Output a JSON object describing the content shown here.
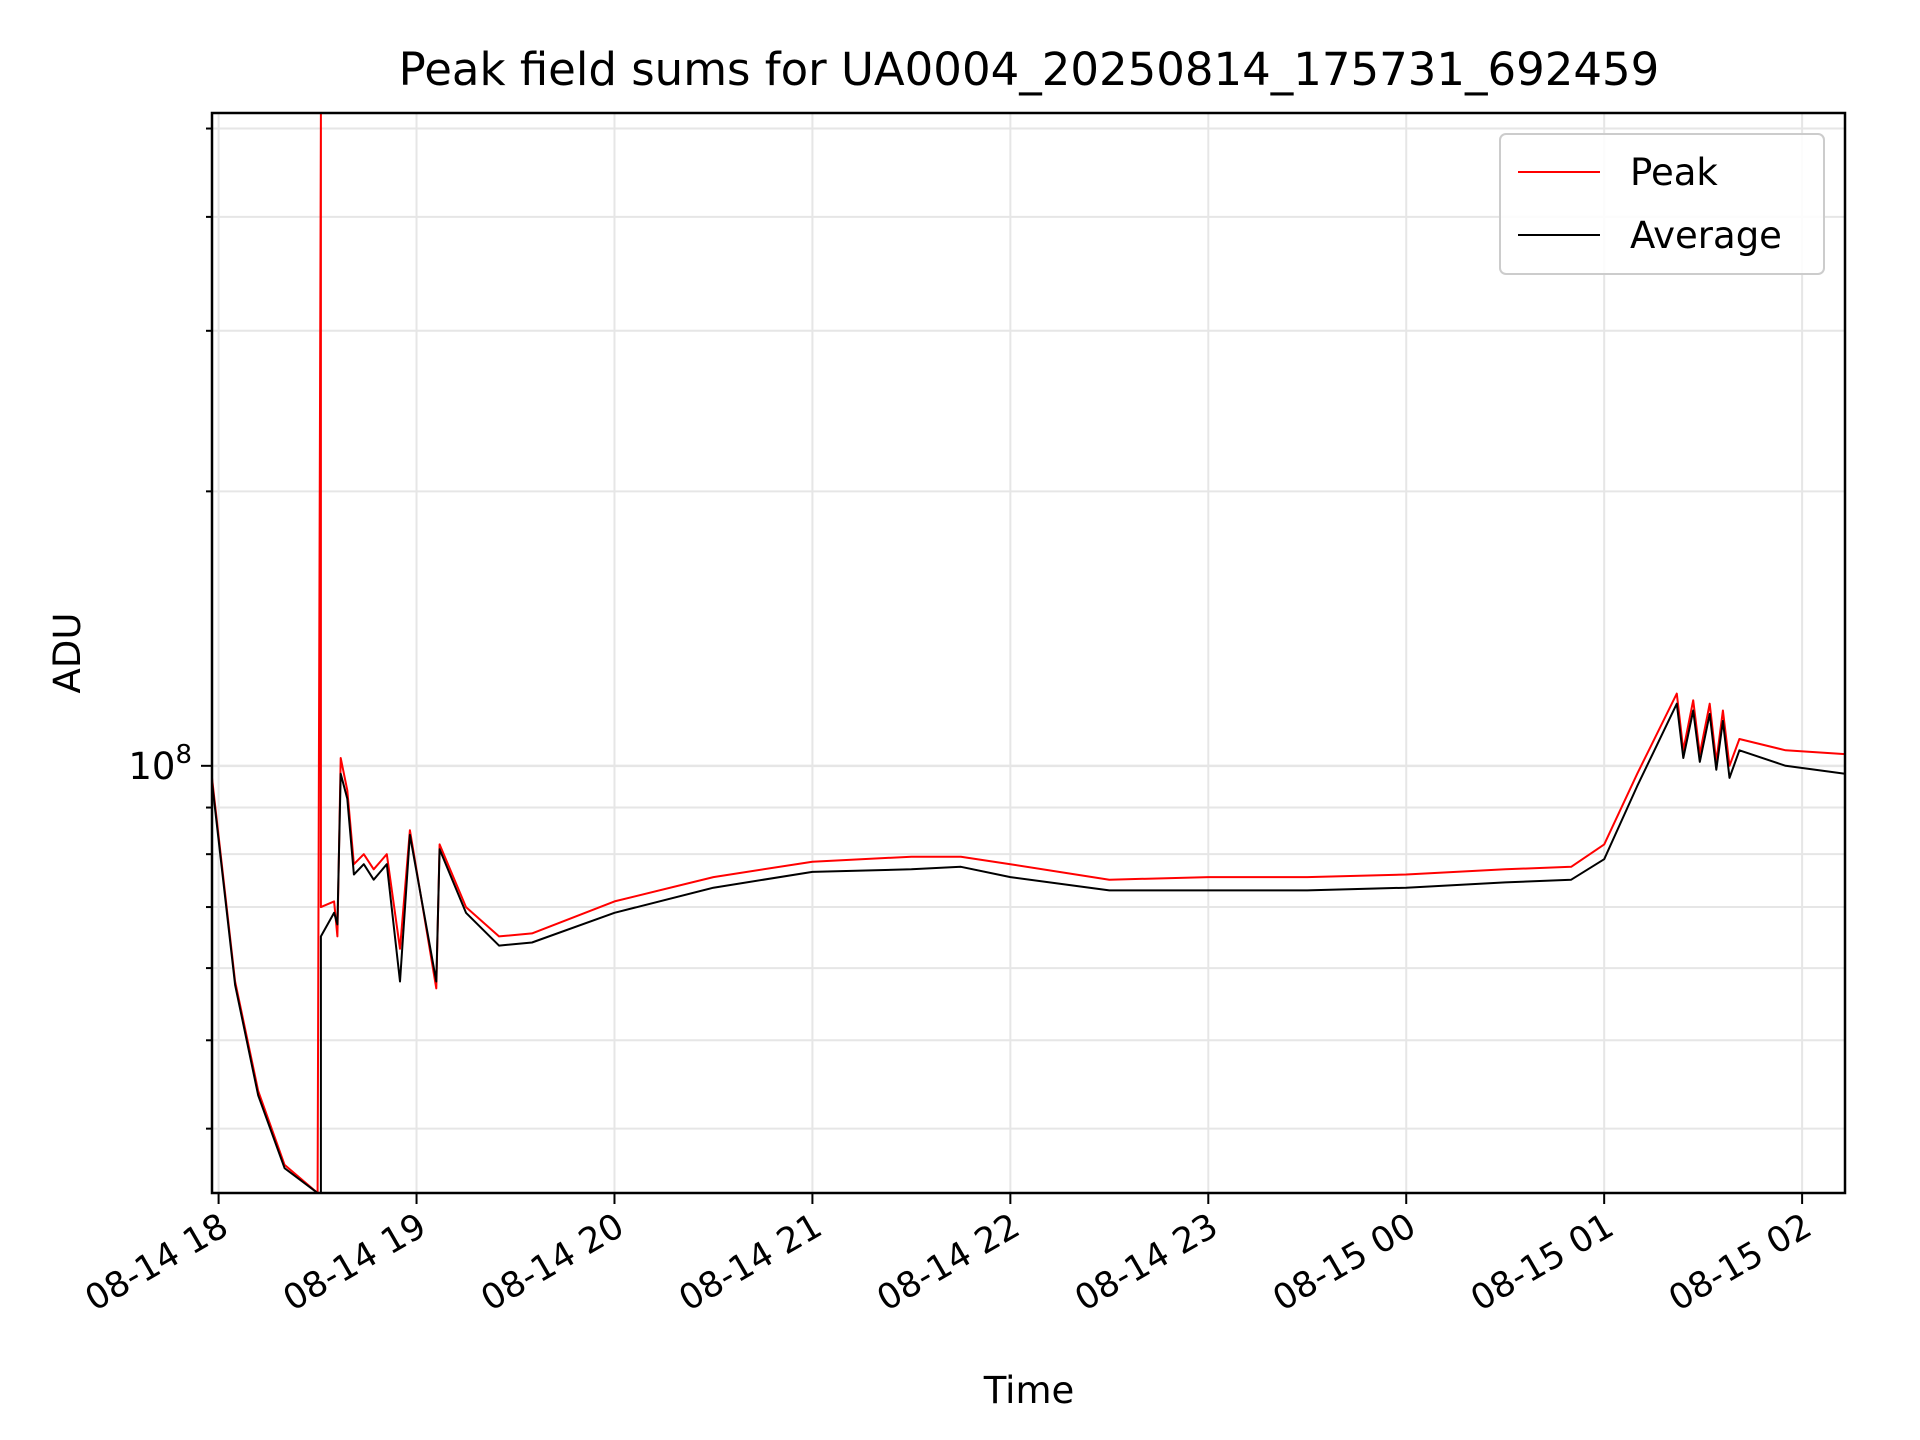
{
  "chart_data": {
    "type": "line",
    "title": "Peak field sums for UA0004_20250814_175731_692459",
    "xlabel": "Time",
    "ylabel": "ADU",
    "y_scale": "log",
    "y_major_tick": {
      "value": 100000000,
      "mantissa": "10",
      "exponent": "8"
    },
    "xlim": [
      "2025-08-14 17:58",
      "2025-08-15 02:13"
    ],
    "ylim": [
      34000000,
      520000000
    ],
    "x_ticks": [
      {
        "t": "2025-08-14 18:00",
        "label": "08-14 18"
      },
      {
        "t": "2025-08-14 19:00",
        "label": "08-14 19"
      },
      {
        "t": "2025-08-14 20:00",
        "label": "08-14 20"
      },
      {
        "t": "2025-08-14 21:00",
        "label": "08-14 21"
      },
      {
        "t": "2025-08-14 22:00",
        "label": "08-14 22"
      },
      {
        "t": "2025-08-14 23:00",
        "label": "08-14 23"
      },
      {
        "t": "2025-08-15 00:00",
        "label": "08-15 00"
      },
      {
        "t": "2025-08-15 01:00",
        "label": "08-15 01"
      },
      {
        "t": "2025-08-15 02:00",
        "label": "08-15 02"
      }
    ],
    "grid": true,
    "legend_position": "top-right",
    "series": [
      {
        "name": "Peak",
        "color": "#ff0000",
        "points": [
          [
            "2025-08-14 17:58",
            97000000
          ],
          [
            "2025-08-14 18:05",
            58000000
          ],
          [
            "2025-08-14 18:12",
            44000000
          ],
          [
            "2025-08-14 18:20",
            36500000
          ],
          [
            "2025-08-14 18:30",
            34000000
          ],
          [
            "2025-08-14 18:31",
            520000000
          ],
          [
            "2025-08-14 18:31",
            70000000
          ],
          [
            "2025-08-14 18:35",
            71000000
          ],
          [
            "2025-08-14 18:36",
            65000000
          ],
          [
            "2025-08-14 18:37",
            102000000
          ],
          [
            "2025-08-14 18:39",
            94000000
          ],
          [
            "2025-08-14 18:41",
            78000000
          ],
          [
            "2025-08-14 18:44",
            80000000
          ],
          [
            "2025-08-14 18:47",
            77000000
          ],
          [
            "2025-08-14 18:51",
            80000000
          ],
          [
            "2025-08-14 18:55",
            63000000
          ],
          [
            "2025-08-14 18:58",
            85000000
          ],
          [
            "2025-08-14 19:06",
            57000000
          ],
          [
            "2025-08-14 19:07",
            82000000
          ],
          [
            "2025-08-14 19:15",
            70000000
          ],
          [
            "2025-08-14 19:25",
            65000000
          ],
          [
            "2025-08-14 19:35",
            65500000
          ],
          [
            "2025-08-14 20:00",
            71000000
          ],
          [
            "2025-08-14 20:30",
            75500000
          ],
          [
            "2025-08-14 21:00",
            78500000
          ],
          [
            "2025-08-14 21:30",
            79500000
          ],
          [
            "2025-08-14 21:45",
            79500000
          ],
          [
            "2025-08-14 22:00",
            78000000
          ],
          [
            "2025-08-14 22:30",
            75000000
          ],
          [
            "2025-08-14 23:00",
            75500000
          ],
          [
            "2025-08-14 23:30",
            75500000
          ],
          [
            "2025-08-15 00:00",
            76000000
          ],
          [
            "2025-08-15 00:30",
            77000000
          ],
          [
            "2025-08-15 00:50",
            77500000
          ],
          [
            "2025-08-15 01:00",
            82000000
          ],
          [
            "2025-08-15 01:10",
            98000000
          ],
          [
            "2025-08-15 01:22",
            120000000
          ],
          [
            "2025-08-15 01:24",
            104000000
          ],
          [
            "2025-08-15 01:27",
            118000000
          ],
          [
            "2025-08-15 01:29",
            103000000
          ],
          [
            "2025-08-15 01:32",
            117000000
          ],
          [
            "2025-08-15 01:34",
            101000000
          ],
          [
            "2025-08-15 01:36",
            115000000
          ],
          [
            "2025-08-15 01:38",
            100000000
          ],
          [
            "2025-08-15 01:41",
            107000000
          ],
          [
            "2025-08-15 01:55",
            104000000
          ],
          [
            "2025-08-15 02:13",
            103000000
          ]
        ]
      },
      {
        "name": "Average",
        "color": "#000000",
        "points": [
          [
            "2025-08-14 17:58",
            96000000
          ],
          [
            "2025-08-14 18:05",
            57500000
          ],
          [
            "2025-08-14 18:12",
            43500000
          ],
          [
            "2025-08-14 18:20",
            36200000
          ],
          [
            "2025-08-14 18:30",
            34000000
          ],
          [
            "2025-08-14 18:31",
            34000000
          ],
          [
            "2025-08-14 18:31",
            65000000
          ],
          [
            "2025-08-14 18:35",
            69000000
          ],
          [
            "2025-08-14 18:36",
            67000000
          ],
          [
            "2025-08-14 18:37",
            98000000
          ],
          [
            "2025-08-14 18:39",
            92000000
          ],
          [
            "2025-08-14 18:41",
            76000000
          ],
          [
            "2025-08-14 18:44",
            78000000
          ],
          [
            "2025-08-14 18:47",
            75000000
          ],
          [
            "2025-08-14 18:51",
            78000000
          ],
          [
            "2025-08-14 18:55",
            58000000
          ],
          [
            "2025-08-14 18:58",
            84000000
          ],
          [
            "2025-08-14 19:06",
            58000000
          ],
          [
            "2025-08-14 19:07",
            81000000
          ],
          [
            "2025-08-14 19:15",
            69000000
          ],
          [
            "2025-08-14 19:25",
            63500000
          ],
          [
            "2025-08-14 19:35",
            64000000
          ],
          [
            "2025-08-14 20:00",
            69000000
          ],
          [
            "2025-08-14 20:30",
            73500000
          ],
          [
            "2025-08-14 21:00",
            76500000
          ],
          [
            "2025-08-14 21:30",
            77000000
          ],
          [
            "2025-08-14 21:45",
            77500000
          ],
          [
            "2025-08-14 22:00",
            75500000
          ],
          [
            "2025-08-14 22:30",
            73000000
          ],
          [
            "2025-08-14 23:00",
            73000000
          ],
          [
            "2025-08-14 23:30",
            73000000
          ],
          [
            "2025-08-15 00:00",
            73500000
          ],
          [
            "2025-08-15 00:30",
            74500000
          ],
          [
            "2025-08-15 00:50",
            75000000
          ],
          [
            "2025-08-15 01:00",
            79000000
          ],
          [
            "2025-08-15 01:10",
            95000000
          ],
          [
            "2025-08-15 01:22",
            117000000
          ],
          [
            "2025-08-15 01:24",
            102000000
          ],
          [
            "2025-08-15 01:27",
            115000000
          ],
          [
            "2025-08-15 01:29",
            101000000
          ],
          [
            "2025-08-15 01:32",
            114000000
          ],
          [
            "2025-08-15 01:34",
            99000000
          ],
          [
            "2025-08-15 01:36",
            112000000
          ],
          [
            "2025-08-15 01:38",
            97000000
          ],
          [
            "2025-08-15 01:41",
            104000000
          ],
          [
            "2025-08-15 01:55",
            100000000
          ],
          [
            "2025-08-15 02:13",
            98000000
          ]
        ]
      }
    ]
  }
}
